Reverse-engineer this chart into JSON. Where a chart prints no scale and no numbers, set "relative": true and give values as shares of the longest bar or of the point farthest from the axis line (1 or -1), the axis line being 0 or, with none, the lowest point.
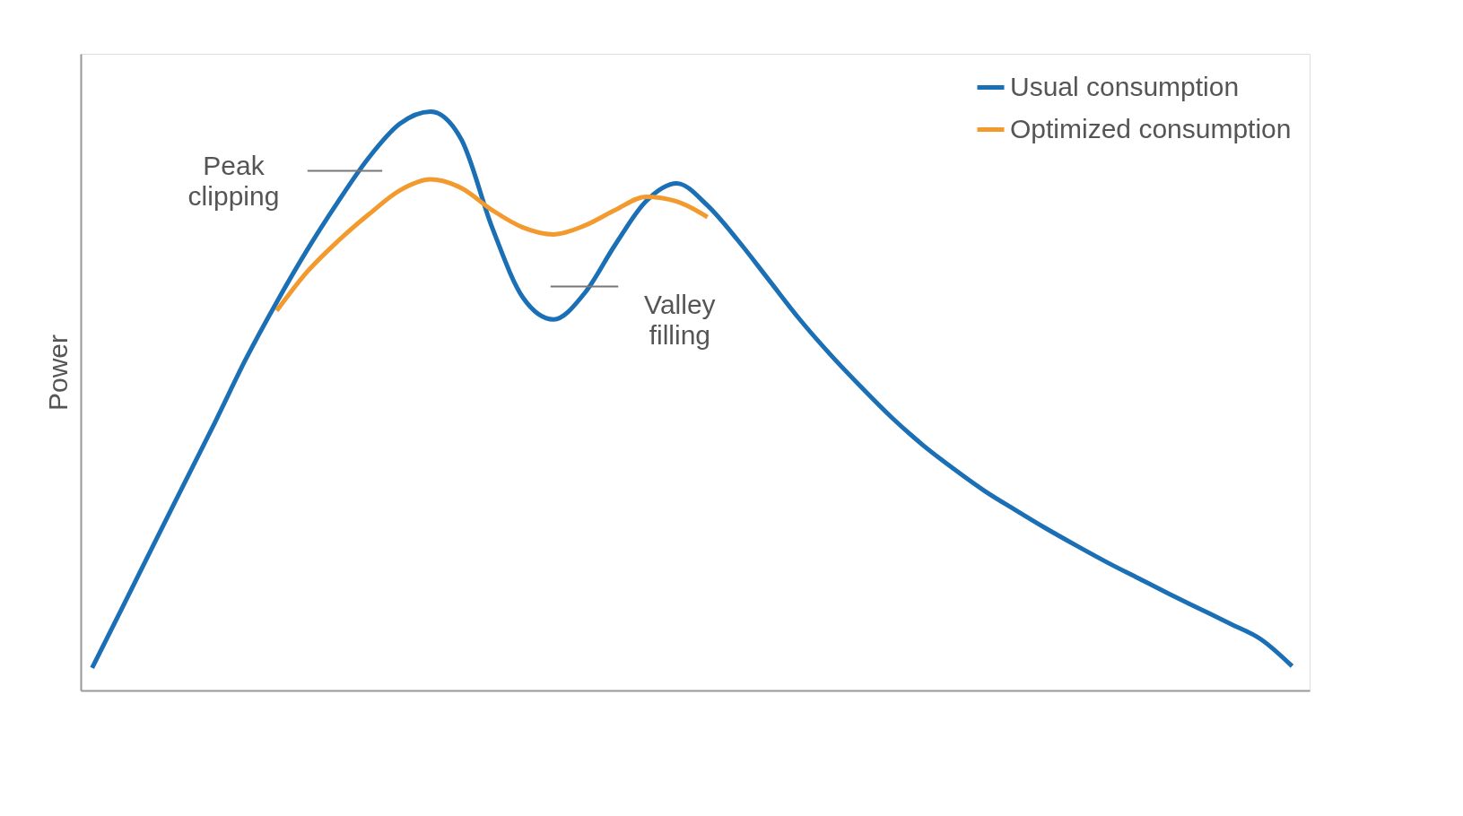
{
  "chart_data": {
    "type": "line",
    "relative": true,
    "ylabel": "Power",
    "legend": "top right",
    "grid": false,
    "tick_labels": false,
    "categories": [
      null,
      null,
      null,
      null,
      null,
      null,
      null,
      null,
      null,
      null,
      null,
      null,
      null,
      null,
      null,
      null,
      null,
      null,
      null,
      null,
      null,
      null,
      null,
      null,
      null,
      null,
      null,
      null,
      null,
      null,
      null,
      null,
      null,
      null,
      null,
      null,
      null,
      null,
      null,
      null
    ],
    "series": [
      {
        "name": "Usual consumption",
        "color": "#1a6fb5",
        "values": [
          0.039,
          0.145,
          0.252,
          0.358,
          0.464,
          0.573,
          0.671,
          0.762,
          0.845,
          0.921,
          0.979,
          1.0,
          0.952,
          0.8,
          0.679,
          0.641,
          0.686,
          0.77,
          0.845,
          0.876,
          0.838,
          0.777,
          0.709,
          0.641,
          0.58,
          0.524,
          0.471,
          0.424,
          0.383,
          0.345,
          0.312,
          0.28,
          0.25,
          0.221,
          0.194,
          0.167,
          0.141,
          0.115,
          0.088,
          0.042
        ]
      },
      {
        "name": "Optimized consumption",
        "color": "#f29a2e",
        "values": [
          null,
          null,
          null,
          null,
          null,
          null,
          0.656,
          0.724,
          0.777,
          0.823,
          0.864,
          0.883,
          0.868,
          0.83,
          0.8,
          0.788,
          0.803,
          0.83,
          0.853,
          0.845,
          0.818,
          null,
          null,
          null,
          null,
          null,
          null,
          null,
          null,
          null,
          null,
          null,
          null,
          null,
          null,
          null,
          null,
          null,
          null,
          null
        ]
      }
    ],
    "annotations": [
      "Peak clipping",
      "Valley filling"
    ]
  }
}
